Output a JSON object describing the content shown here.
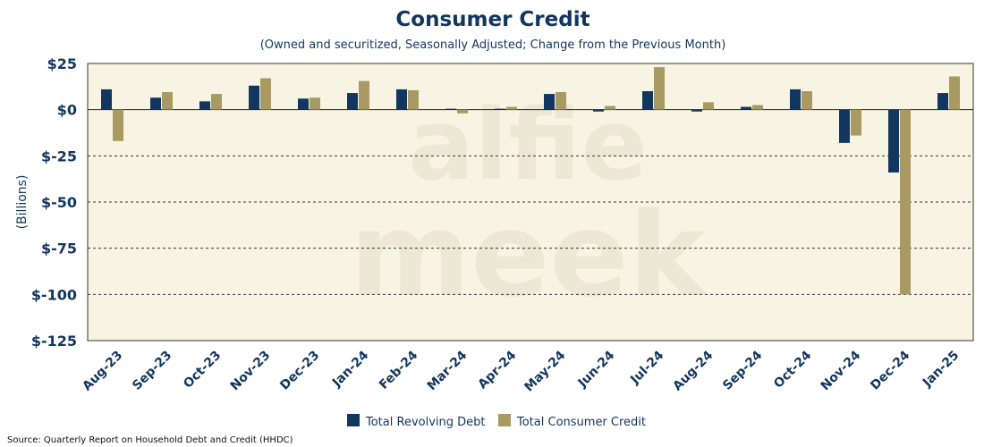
{
  "chart_data": {
    "type": "bar",
    "title": "Consumer Credit",
    "subtitle": "(Owned and securitized, Seasonally Adjusted; Change from the Previous Month)",
    "ylabel": "(Billions)",
    "xlabel": "",
    "ylim": [
      -125,
      25
    ],
    "yticks": [
      25,
      0,
      -25,
      -50,
      -75,
      -100,
      -125
    ],
    "ytick_labels": [
      "$25",
      "$0",
      "$-25",
      "$-50",
      "$-75",
      "$-100",
      "$-125"
    ],
    "categories": [
      "Aug-23",
      "Sep-23",
      "Oct-23",
      "Nov-23",
      "Dec-23",
      "Jan-24",
      "Feb-24",
      "Mar-24",
      "Apr-24",
      "May-24",
      "Jun-24",
      "Jul-24",
      "Aug-24",
      "Sep-24",
      "Oct-24",
      "Nov-24",
      "Dec-24",
      "Jan-25"
    ],
    "series": [
      {
        "name": "Total Revolving Debt",
        "color": "#12365f",
        "values": [
          11,
          6.5,
          4.5,
          13,
          6,
          9,
          11,
          0.5,
          0.5,
          8.5,
          -1,
          10,
          -1,
          1.5,
          11,
          -18,
          -34,
          9
        ]
      },
      {
        "name": "Total Consumer Credit",
        "color": "#a89a62",
        "values": [
          -17,
          9.5,
          8.5,
          17,
          6.5,
          15.5,
          10.5,
          -2,
          1.5,
          9.5,
          2,
          23,
          4,
          2.5,
          10,
          -14,
          -100,
          18
        ]
      }
    ],
    "grid": "dashed horizontal",
    "legend": "bottom-center",
    "plot_background": "#f8f4e3",
    "watermark": "alfie meek",
    "source": "Source: Quarterly Report on Household Debt and Credit (HHDC)"
  }
}
